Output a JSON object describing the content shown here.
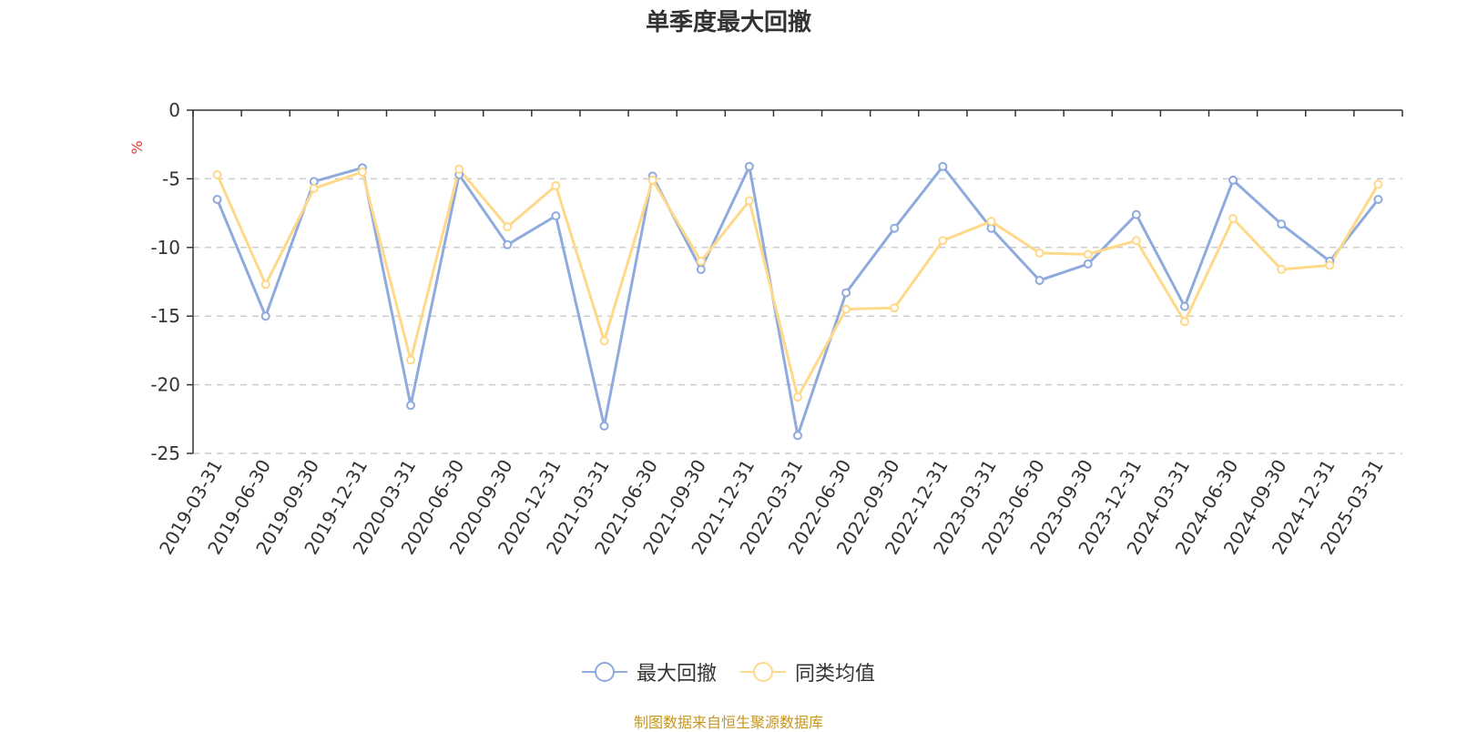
{
  "chart_data": {
    "type": "line",
    "title": "单季度最大回撤",
    "ylabel": "%",
    "ylim": [
      -25,
      0
    ],
    "yticks": [
      0,
      -5,
      -10,
      -15,
      -20,
      -25
    ],
    "grid": true,
    "legend_position": "bottom-center",
    "categories": [
      "2019-03-31",
      "2019-06-30",
      "2019-09-30",
      "2019-12-31",
      "2020-03-31",
      "2020-06-30",
      "2020-09-30",
      "2020-12-31",
      "2021-03-31",
      "2021-06-30",
      "2021-09-30",
      "2021-12-31",
      "2022-03-31",
      "2022-06-30",
      "2022-09-30",
      "2022-12-31",
      "2023-03-31",
      "2023-06-30",
      "2023-09-30",
      "2023-12-31",
      "2024-03-31",
      "2024-06-30",
      "2024-09-30",
      "2024-12-31",
      "2025-03-31"
    ],
    "series": [
      {
        "name": "最大回撤",
        "color": "#8faadc",
        "values": [
          -6.5,
          -15.0,
          -5.2,
          -4.2,
          -21.5,
          -4.7,
          -9.8,
          -7.7,
          -23.0,
          -4.8,
          -11.6,
          -4.1,
          -23.7,
          -13.3,
          -8.6,
          -4.1,
          -8.6,
          -12.4,
          -11.2,
          -7.6,
          -14.3,
          -5.1,
          -8.3,
          -11.0,
          -6.5
        ]
      },
      {
        "name": "同类均值",
        "color": "#ffd98a",
        "values": [
          -4.7,
          -12.7,
          -5.7,
          -4.5,
          -18.2,
          -4.3,
          -8.5,
          -5.5,
          -16.8,
          -5.1,
          -11.0,
          -6.6,
          -20.9,
          -14.5,
          -14.4,
          -9.5,
          -8.1,
          -10.4,
          -10.5,
          -9.5,
          -15.4,
          -7.9,
          -11.6,
          -11.3,
          -5.4
        ]
      }
    ]
  },
  "source_note": "制图数据来自恒生聚源数据库"
}
